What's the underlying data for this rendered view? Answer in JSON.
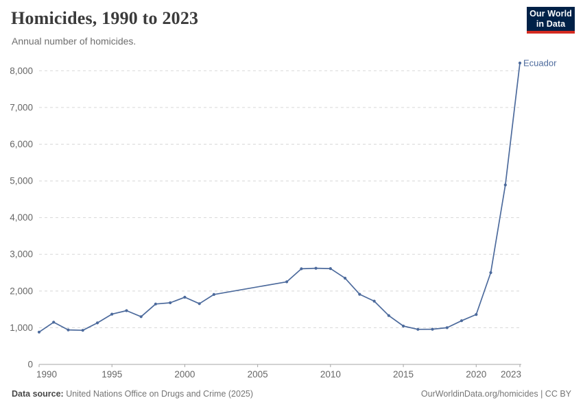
{
  "header": {
    "title": "Homicides, 1990 to 2023",
    "subtitle": "Annual number of homicides.",
    "logo": {
      "line1": "Our World",
      "line2": "in Data"
    },
    "logo_colors": {
      "background": "#002147",
      "accent": "#d42b21"
    }
  },
  "footer": {
    "source_label": "Data source:",
    "source_text": " United Nations Office on Drugs and Crime (2025)",
    "link_text": "OurWorldinData.org/homicides | CC BY"
  },
  "chart_data": {
    "type": "line",
    "title": "Homicides, 1990 to 2023",
    "subtitle": "Annual number of homicides.",
    "xlabel": "",
    "ylabel": "",
    "entity_label": "Ecuador",
    "line_color": "#4c6a9c",
    "grid": "horizontal-dashed",
    "grid_color": "#d8d8d8",
    "axis_color": "#a5a5a5",
    "tick_label_color": "#666666",
    "legend_position": "end-of-line-label",
    "xlim": [
      1990,
      2023
    ],
    "ylim": [
      0,
      8000
    ],
    "xticks": [
      1990,
      1995,
      2000,
      2005,
      2010,
      2015,
      2020,
      2023
    ],
    "yticks": [
      0,
      1000,
      2000,
      3000,
      4000,
      5000,
      6000,
      7000,
      8000
    ],
    "missing_years_interpolated": [
      2003,
      2004,
      2005,
      2006
    ],
    "series": [
      {
        "name": "Ecuador",
        "x": [
          1990,
          1991,
          1992,
          1993,
          1994,
          1995,
          1996,
          1997,
          1998,
          1999,
          2000,
          2001,
          2002,
          2007,
          2008,
          2009,
          2010,
          2011,
          2012,
          2013,
          2014,
          2015,
          2016,
          2017,
          2018,
          2019,
          2020,
          2021,
          2022,
          2023
        ],
        "y": [
          880,
          1150,
          940,
          930,
          1130,
          1370,
          1465,
          1300,
          1645,
          1680,
          1830,
          1655,
          1905,
          2250,
          2605,
          2620,
          2610,
          2350,
          1910,
          1725,
          1330,
          1045,
          955,
          960,
          1000,
          1190,
          1360,
          2500,
          4890,
          8210
        ]
      }
    ]
  }
}
